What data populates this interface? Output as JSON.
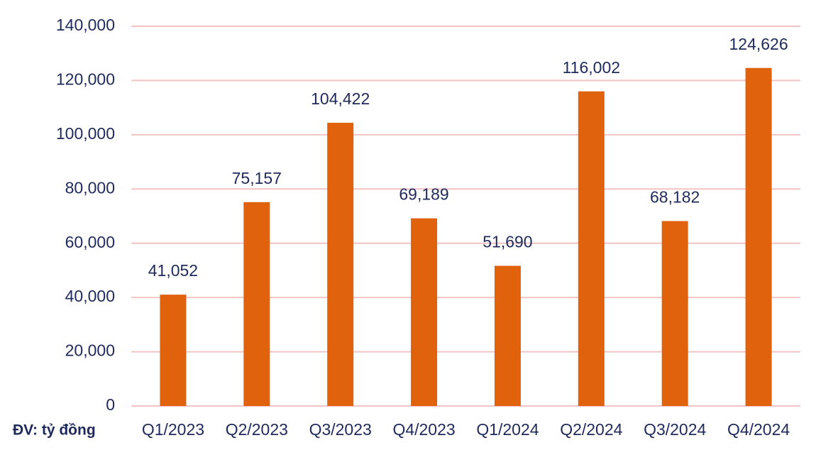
{
  "chart_data": {
    "type": "bar",
    "unit_label": "ĐV: tỷ đồng",
    "categories": [
      "Q1/2023",
      "Q2/2023",
      "Q3/2023",
      "Q4/2023",
      "Q1/2024",
      "Q2/2024",
      "Q3/2024",
      "Q4/2024"
    ],
    "values": [
      41052,
      75157,
      104422,
      69189,
      51690,
      116002,
      68182,
      124626
    ],
    "value_labels": [
      "41,052",
      "75,157",
      "104,422",
      "69,189",
      "51,690",
      "116,002",
      "68,182",
      "124,626"
    ],
    "color": "#e0620d",
    "ylim": [
      0,
      140000
    ],
    "yticks": [
      0,
      {
        "value": 20000,
        "label": "20,000"
      },
      {
        "value": 40000,
        "label": "40,000"
      },
      {
        "value": 60000,
        "label": "60,000"
      },
      {
        "value": 80000,
        "label": "80,000"
      },
      {
        "value": 100000,
        "label": "100,000"
      },
      {
        "value": 120000,
        "label": "120,000"
      },
      {
        "value": 140000,
        "label": "140,000"
      }
    ],
    "grid": true
  }
}
